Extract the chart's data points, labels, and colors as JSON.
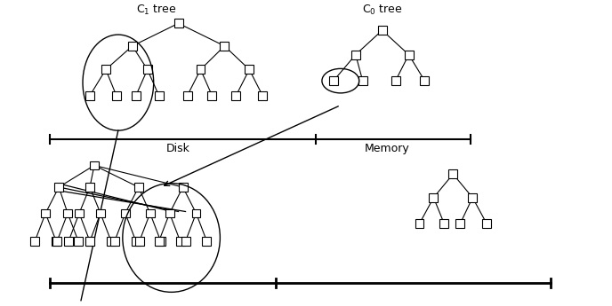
{
  "bg_color": "#ffffff",
  "lc": "#000000",
  "c1_label": "C$_1$ tree",
  "c0_label": "C$_0$ tree",
  "disk_label": "Disk",
  "memory_label": "Memory",
  "figw": 6.88,
  "figh": 3.45,
  "dpi": 100
}
